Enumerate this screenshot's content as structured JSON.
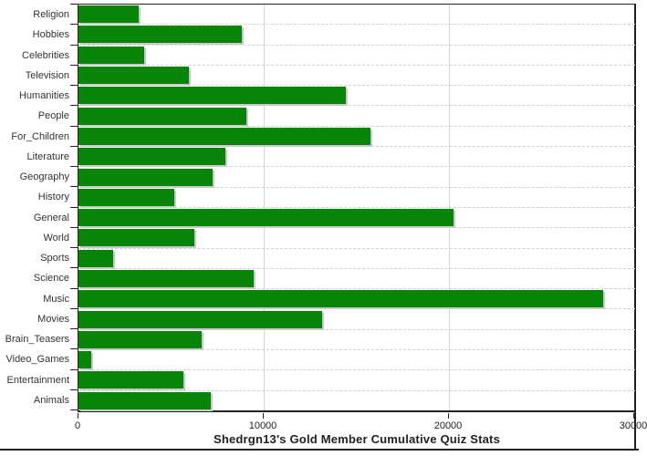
{
  "chart_data": {
    "type": "bar",
    "orientation": "horizontal",
    "title": "Shedrgn13's Gold Member Cumulative Quiz Stats",
    "categories": [
      "Religion",
      "Hobbies",
      "Celebrities",
      "Television",
      "Humanities",
      "People",
      "For_Children",
      "Literature",
      "Geography",
      "History",
      "General",
      "World",
      "Sports",
      "Science",
      "Music",
      "Movies",
      "Brain_Teasers",
      "Video_Games",
      "Entertainment",
      "Animals"
    ],
    "values": [
      3230,
      8800,
      3540,
      5960,
      14400,
      9050,
      15720,
      7930,
      7210,
      5180,
      20220,
      6250,
      1870,
      9440,
      28300,
      13150,
      6660,
      680,
      5660,
      7110
    ],
    "xlabel": "",
    "ylabel": "",
    "xlim": [
      0,
      30000
    ],
    "x_ticks": [
      0,
      10000,
      20000,
      30000
    ],
    "x_tick_labels": [
      "0",
      "10000",
      "20000",
      "30000"
    ],
    "grid": "horizontal-dashed and vertical at major x ticks",
    "legend": "none",
    "colors": {
      "bar": "#088408",
      "bar_shadow": "#c9c9c9",
      "gridline": "#d0d0d0",
      "frame": "#222222",
      "text": "#222222"
    }
  }
}
